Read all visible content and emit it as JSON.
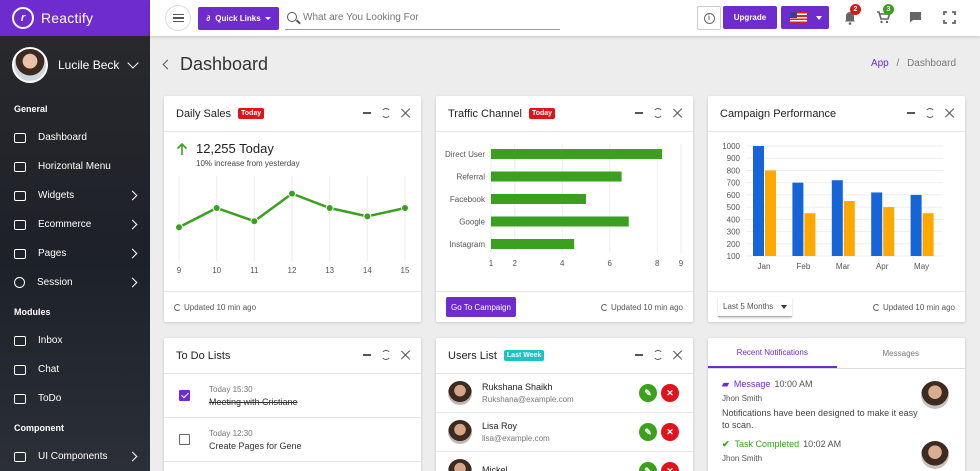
{
  "app": {
    "name": "Reactify"
  },
  "sidebar": {
    "user": "Lucile Beck",
    "sections": [
      {
        "title": "General",
        "items": [
          {
            "label": "Dashboard",
            "icon": "speedometer-icon",
            "arrow": false
          },
          {
            "label": "Horizontal Menu",
            "icon": "layout-icon",
            "arrow": false
          },
          {
            "label": "Widgets",
            "icon": "widget-icon",
            "arrow": true
          },
          {
            "label": "Ecommerce",
            "icon": "cart-icon",
            "arrow": true
          },
          {
            "label": "Pages",
            "icon": "pages-icon",
            "arrow": true
          },
          {
            "label": "Session",
            "icon": "clock-icon",
            "arrow": true
          }
        ]
      },
      {
        "title": "Modules",
        "items": [
          {
            "label": "Inbox",
            "icon": "inbox-icon",
            "arrow": false
          },
          {
            "label": "Chat",
            "icon": "chat-icon",
            "arrow": false
          },
          {
            "label": "ToDo",
            "icon": "todo-icon",
            "arrow": false
          }
        ]
      },
      {
        "title": "Component",
        "items": [
          {
            "label": "UI Components",
            "icon": "components-icon",
            "arrow": true
          }
        ]
      }
    ]
  },
  "header": {
    "quick_links": "Quick Links",
    "search_placeholder": "What are You Looking For",
    "info_glyph": "i",
    "upgrade": "Upgrade",
    "notifications_count": "2",
    "cart_count": "3"
  },
  "page": {
    "title": "Dashboard",
    "breadcrumb_root": "App",
    "breadcrumb_sep": "/",
    "breadcrumb_current": "Dashboard"
  },
  "daily_sales": {
    "title": "Daily Sales",
    "tag": "Today",
    "value": "12,255 Today",
    "subtitle": "10% increase from yesterday",
    "updated": "Updated 10 min ago",
    "chart_data": {
      "type": "line",
      "x": [
        "9",
        "10",
        "11",
        "12",
        "13",
        "14",
        "15"
      ],
      "values": [
        24,
        40,
        29,
        52,
        40,
        33,
        40
      ],
      "color": "#3aa01d"
    }
  },
  "traffic": {
    "title": "Traffic Channel",
    "tag": "Today",
    "button": "Go To Campaign",
    "updated": "Updated 10 min ago",
    "chart_data": {
      "type": "bar",
      "orientation": "horizontal",
      "categories": [
        "Direct User",
        "Referral",
        "Facebook",
        "Google",
        "Instagram"
      ],
      "values": [
        8.2,
        6.5,
        5.0,
        6.8,
        4.5
      ],
      "xticks": [
        "1",
        "2",
        "4",
        "6",
        "8",
        "9"
      ],
      "color": "#3aa01d"
    }
  },
  "campaign": {
    "title": "Campaign Performance",
    "dropdown": "Last 5 Months",
    "updated": "Updated 10 min ago",
    "chart_data": {
      "type": "bar",
      "categories": [
        "Jan",
        "Feb",
        "Mar",
        "Apr",
        "May"
      ],
      "ylim": [
        100,
        1000
      ],
      "yticks": [
        "1000",
        "900",
        "800",
        "700",
        "600",
        "500",
        "400",
        "300",
        "200",
        "100"
      ],
      "series": [
        {
          "values": [
            1000,
            700,
            720,
            620,
            600
          ],
          "color": "#1565d8"
        },
        {
          "values": [
            800,
            450,
            550,
            500,
            450
          ],
          "color": "#ffa800"
        }
      ]
    }
  },
  "todo": {
    "title": "To Do Lists",
    "items": [
      {
        "time": "Today 15:30",
        "text": "Meeting with Cristiane",
        "done": true
      },
      {
        "time": "Today 12:30",
        "text": "Create Pages for Gene",
        "done": false
      }
    ]
  },
  "users": {
    "title": "Users List",
    "tag": "Last Week",
    "rows": [
      {
        "name": "Rukshana Shaikh",
        "email": "Rukshana@example.com"
      },
      {
        "name": "Lisa Roy",
        "email": "lisa@example.com"
      },
      {
        "name": "Mickel",
        "email": ""
      }
    ]
  },
  "notifications": {
    "tabs": [
      "Recent Notifications",
      "Messages"
    ],
    "items": [
      {
        "type": "Message",
        "time": "10:00 AM",
        "who": "Jhon Smith",
        "text": "Notifications have been designed to make it easy to scan."
      },
      {
        "type": "Task Completed",
        "time": "10:02 AM",
        "who": "Jhon Smith",
        "text": ""
      }
    ]
  }
}
